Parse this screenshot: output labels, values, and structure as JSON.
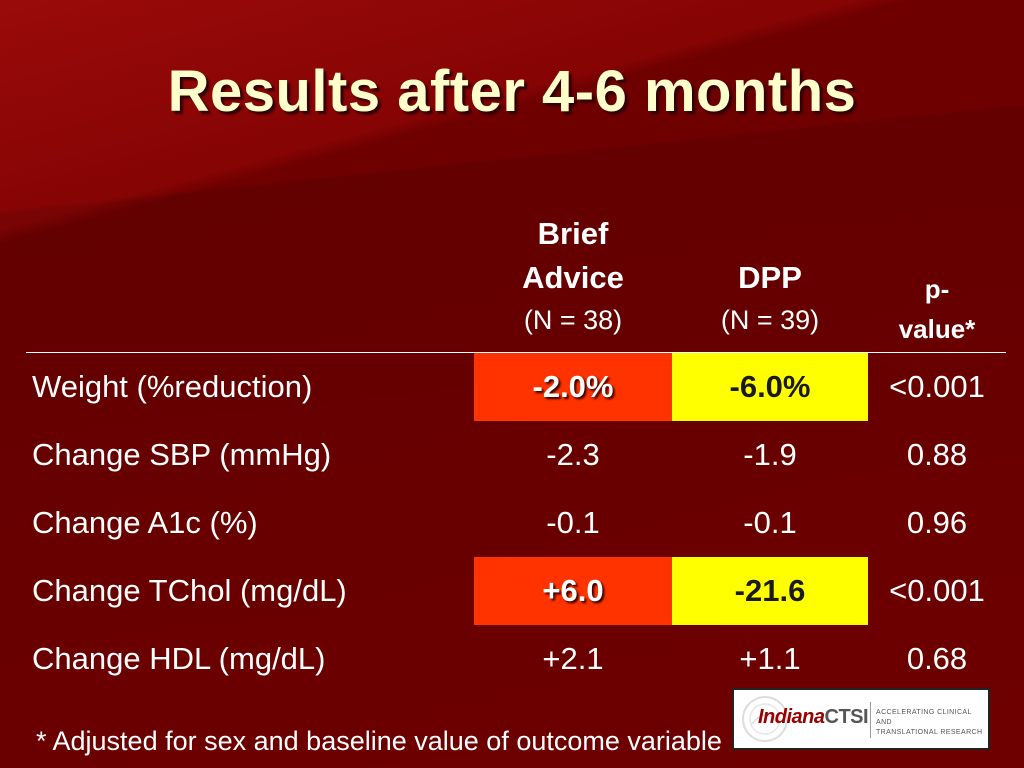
{
  "slide": {
    "title": "Results after 4-6 months",
    "columns": {
      "brief_advice": {
        "label_line1": "Brief",
        "label_line2": "Advice",
        "n": "(N = 38)"
      },
      "dpp": {
        "label": "DPP",
        "n": "(N = 39)"
      },
      "pvalue": {
        "label_line1": "p-",
        "label_line2": "value*"
      }
    },
    "rows": [
      {
        "label": "Weight (%reduction)",
        "brief_advice": "-2.0%",
        "dpp": "-6.0%",
        "pvalue": "<0.001"
      },
      {
        "label": "Change SBP (mmHg)",
        "brief_advice": "-2.3",
        "dpp": "-1.9",
        "pvalue": "0.88"
      },
      {
        "label": "Change A1c (%)",
        "brief_advice": "-0.1",
        "dpp": "-0.1",
        "pvalue": "0.96"
      },
      {
        "label": "Change TChol (mg/dL)",
        "brief_advice": "+6.0",
        "dpp": "-21.6",
        "pvalue": "<0.001"
      },
      {
        "label": "Change HDL (mg/dL)",
        "brief_advice": "+2.1",
        "dpp": "+1.1",
        "pvalue": "0.68"
      }
    ],
    "footnote": "* Adjusted for sex and baseline value of outcome variable",
    "logo": {
      "name_part1": "Indiana",
      "name_part2": "CTSI",
      "tagline_line1": "ACCELERATING CLINICAL AND",
      "tagline_line2": "TRANSLATIONAL RESEARCH"
    },
    "colors": {
      "background": "#7a0000",
      "title": "#ffffcc",
      "highlight_red": "#ff3300",
      "highlight_yellow": "#ffff00"
    }
  }
}
